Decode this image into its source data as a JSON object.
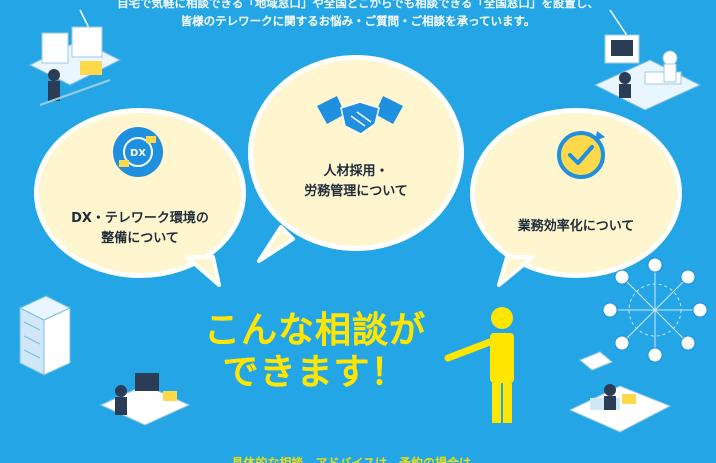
{
  "header": {
    "line1": "自宅で気軽に相談できる「地域窓口」や全国どこからでも相談できる「全国窓口」を設置し、",
    "line2": "皆様のテレワークに関するお悩み・ご質問・ご相談を承っています。"
  },
  "bubbles": [
    {
      "id": "dx",
      "line1": "DX・テレワーク環境の",
      "line2": "整備について",
      "icon": "dx-circle-icon",
      "icon_label": "DX"
    },
    {
      "id": "hr",
      "line1": "人材採用・",
      "line2": "労務管理について",
      "icon": "handshake-icon"
    },
    {
      "id": "eff",
      "line1": "業務効率化について",
      "icon": "clock-check-icon"
    }
  ],
  "main": {
    "title_line1": "こんな相談が",
    "title_line2": "できます！"
  },
  "footer": {
    "text": "具体的な相談、アドバイスは、予約の場合は..."
  },
  "colors": {
    "background": "#24a6e6",
    "bubble_fill": "#fff6cf",
    "accent_yellow": "#ffe600",
    "icon_blue": "#1f8fe0"
  }
}
